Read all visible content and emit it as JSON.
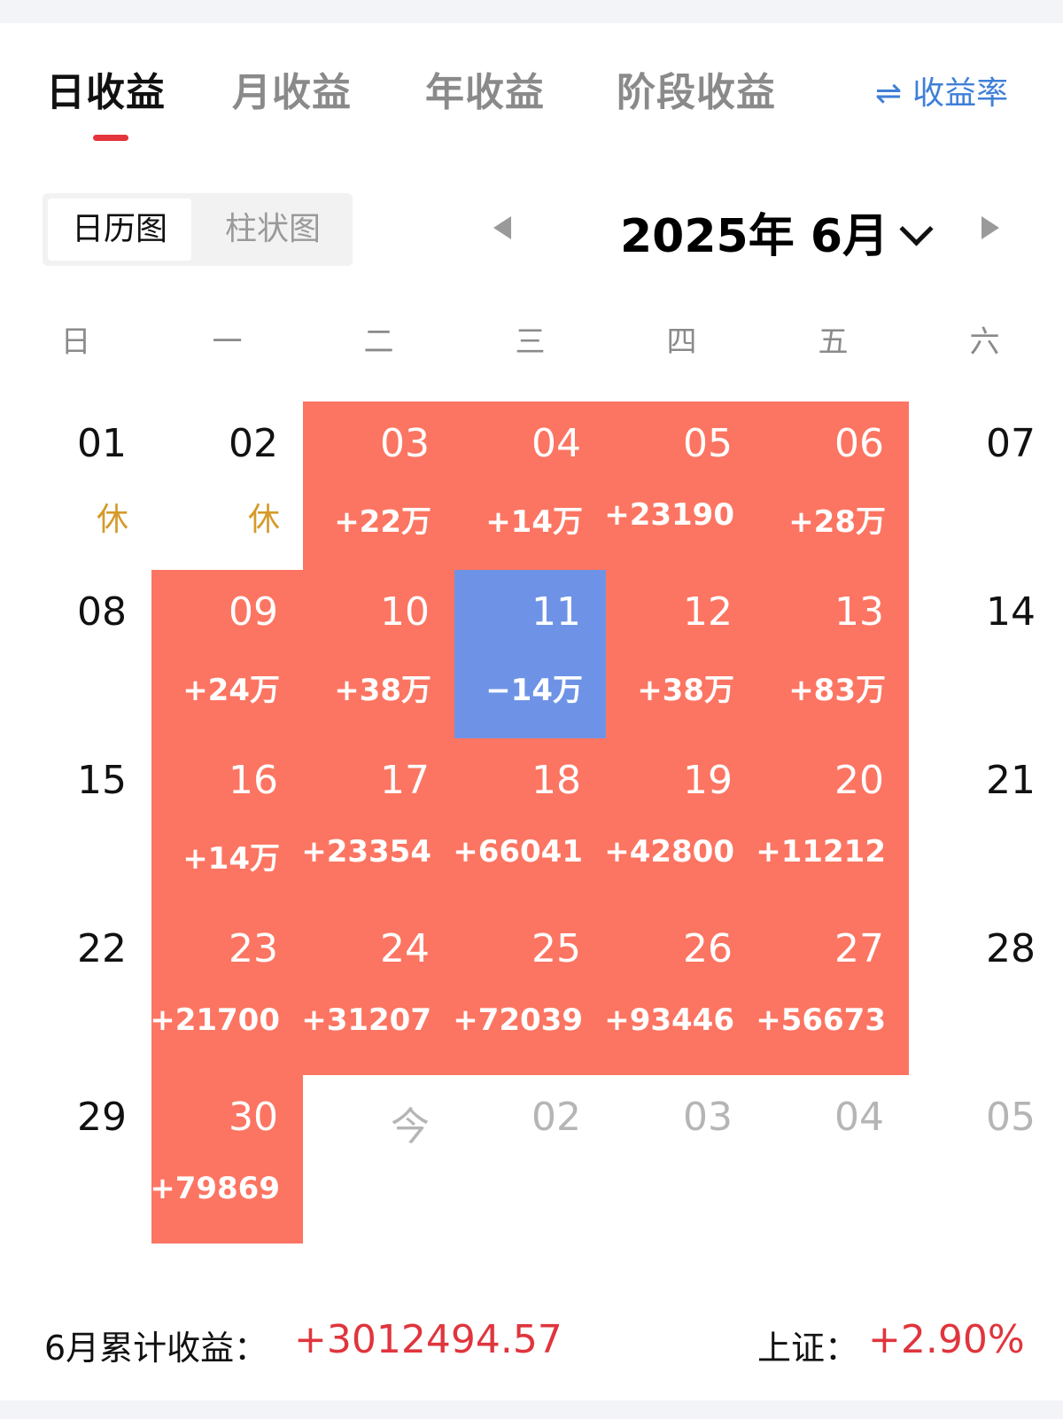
{
  "tabs": [
    {
      "label": "日收益",
      "active": true
    },
    {
      "label": "月收益",
      "active": false
    },
    {
      "label": "年收益",
      "active": false
    },
    {
      "label": "阶段收益",
      "active": false
    }
  ],
  "rate_toggle": {
    "icon": "swap-arrows-icon",
    "icon_glyph": "⇌",
    "label": "收益率"
  },
  "view_switch": {
    "calendar": "日历图",
    "bar": "柱状图"
  },
  "month_nav": {
    "title": "2025年 6月"
  },
  "weekdays": [
    "日",
    "一",
    "二",
    "三",
    "四",
    "五",
    "六"
  ],
  "calendar": [
    {
      "day": "01",
      "col": 0,
      "row": 0,
      "status": "rest",
      "sub": "休"
    },
    {
      "day": "02",
      "col": 1,
      "row": 0,
      "status": "rest",
      "sub": "休"
    },
    {
      "day": "03",
      "col": 2,
      "row": 0,
      "status": "up",
      "sub": "+22万"
    },
    {
      "day": "04",
      "col": 3,
      "row": 0,
      "status": "up",
      "sub": "+14万"
    },
    {
      "day": "05",
      "col": 4,
      "row": 0,
      "status": "up",
      "sub": "+23190"
    },
    {
      "day": "06",
      "col": 5,
      "row": 0,
      "status": "up",
      "sub": "+28万"
    },
    {
      "day": "07",
      "col": 6,
      "row": 0,
      "status": "none",
      "sub": ""
    },
    {
      "day": "08",
      "col": 0,
      "row": 1,
      "status": "none",
      "sub": ""
    },
    {
      "day": "09",
      "col": 1,
      "row": 1,
      "status": "up",
      "sub": "+24万"
    },
    {
      "day": "10",
      "col": 2,
      "row": 1,
      "status": "up",
      "sub": "+38万"
    },
    {
      "day": "11",
      "col": 3,
      "row": 1,
      "status": "down",
      "sub": "−14万"
    },
    {
      "day": "12",
      "col": 4,
      "row": 1,
      "status": "up",
      "sub": "+38万"
    },
    {
      "day": "13",
      "col": 5,
      "row": 1,
      "status": "up",
      "sub": "+83万"
    },
    {
      "day": "14",
      "col": 6,
      "row": 1,
      "status": "none",
      "sub": ""
    },
    {
      "day": "15",
      "col": 0,
      "row": 2,
      "status": "none",
      "sub": ""
    },
    {
      "day": "16",
      "col": 1,
      "row": 2,
      "status": "up",
      "sub": "+14万"
    },
    {
      "day": "17",
      "col": 2,
      "row": 2,
      "status": "up",
      "sub": "+23354"
    },
    {
      "day": "18",
      "col": 3,
      "row": 2,
      "status": "up",
      "sub": "+66041"
    },
    {
      "day": "19",
      "col": 4,
      "row": 2,
      "status": "up",
      "sub": "+42800"
    },
    {
      "day": "20",
      "col": 5,
      "row": 2,
      "status": "up",
      "sub": "+11212"
    },
    {
      "day": "21",
      "col": 6,
      "row": 2,
      "status": "none",
      "sub": ""
    },
    {
      "day": "22",
      "col": 0,
      "row": 3,
      "status": "none",
      "sub": ""
    },
    {
      "day": "23",
      "col": 1,
      "row": 3,
      "status": "up",
      "sub": "+21700"
    },
    {
      "day": "24",
      "col": 2,
      "row": 3,
      "status": "up",
      "sub": "+31207"
    },
    {
      "day": "25",
      "col": 3,
      "row": 3,
      "status": "up",
      "sub": "+72039"
    },
    {
      "day": "26",
      "col": 4,
      "row": 3,
      "status": "up",
      "sub": "+93446"
    },
    {
      "day": "27",
      "col": 5,
      "row": 3,
      "status": "up",
      "sub": "+56673"
    },
    {
      "day": "28",
      "col": 6,
      "row": 3,
      "status": "none",
      "sub": ""
    },
    {
      "day": "29",
      "col": 0,
      "row": 4,
      "status": "none",
      "sub": ""
    },
    {
      "day": "30",
      "col": 1,
      "row": 4,
      "status": "up",
      "sub": "+79869"
    },
    {
      "day": "今",
      "col": 2,
      "row": 4,
      "status": "future",
      "sub": ""
    },
    {
      "day": "02",
      "col": 3,
      "row": 4,
      "status": "future",
      "sub": ""
    },
    {
      "day": "03",
      "col": 4,
      "row": 4,
      "status": "future",
      "sub": ""
    },
    {
      "day": "04",
      "col": 5,
      "row": 4,
      "status": "future",
      "sub": ""
    },
    {
      "day": "05",
      "col": 6,
      "row": 4,
      "status": "future",
      "sub": ""
    }
  ],
  "colors": {
    "up": "#fc7562",
    "down": "#6e93e6",
    "rest_text": "#d59a2b",
    "accent_red": "#e0353d",
    "link_blue": "#3f7fd8"
  },
  "footer": {
    "cumulative_label": "6月累计收益：",
    "cumulative_value": "+3012494.57",
    "index_label": "上证：",
    "index_value": "+2.90%"
  }
}
